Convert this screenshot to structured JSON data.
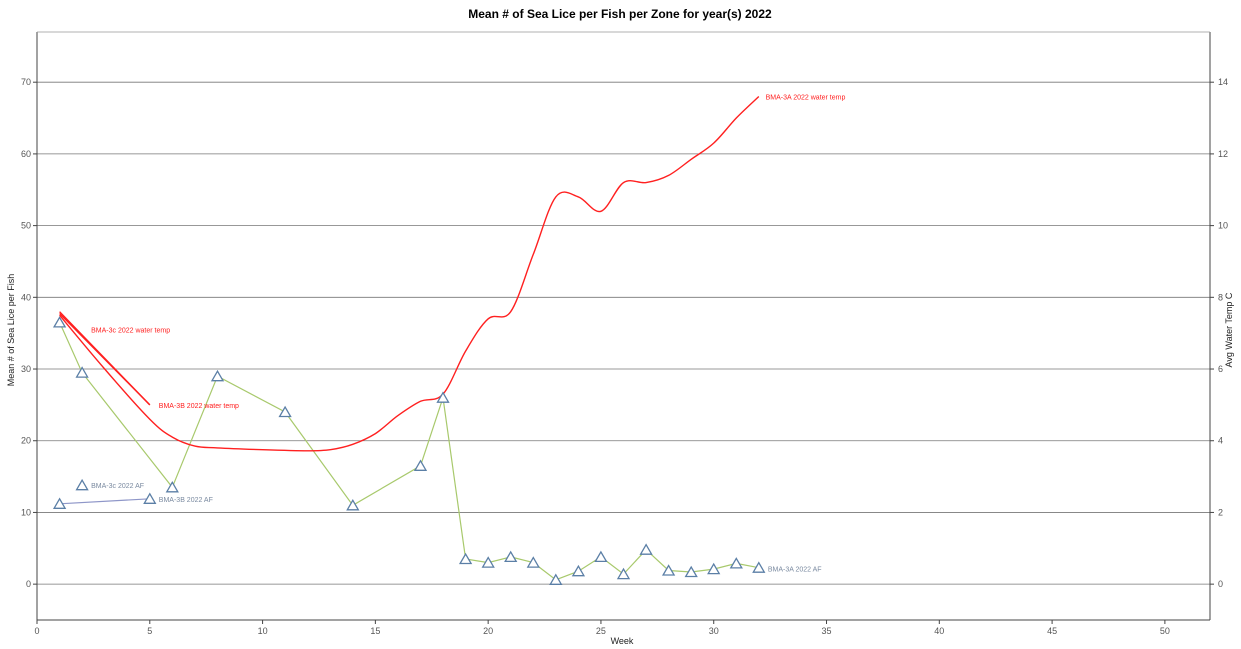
{
  "chart_data": {
    "type": "line",
    "title": "Mean # of Sea Lice per Fish per Zone for year(s) 2022",
    "xlabel": "Week",
    "ylabel_left": "Mean # of Sea Lice per Fish",
    "ylabel_right": "Avg Water Temp C",
    "xlim": [
      0,
      52
    ],
    "ylim_left": [
      -5,
      77
    ],
    "ylim_right": [
      -1,
      15.4
    ],
    "x_ticks": [
      0,
      5,
      10,
      15,
      20,
      25,
      30,
      35,
      40,
      45,
      50
    ],
    "y_ticks_left": [
      0,
      10,
      20,
      30,
      40,
      50,
      60,
      70
    ],
    "y_ticks_right": [
      0,
      2,
      4,
      6,
      8,
      10,
      12,
      14
    ],
    "grid": "horizontal",
    "legend": "none",
    "colors": {
      "temp": "#ff2020",
      "af_3a": "#a8c96c",
      "af_3b": "#8e96c8",
      "marker_stroke": "#5b7fa6",
      "grid": "#777777",
      "label_af": "#7a8aa0"
    },
    "series": [
      {
        "name": "BMA-3A 2022 AF",
        "axis": "left",
        "kind": "af",
        "color": "#a8c96c",
        "x": [
          1,
          2,
          6,
          8,
          11,
          14,
          17,
          18,
          19,
          20,
          21,
          22,
          23,
          24,
          25,
          26,
          27,
          28,
          29,
          30,
          31,
          32
        ],
        "y": [
          36.5,
          29.5,
          13.5,
          29,
          24,
          11,
          16.5,
          26,
          3.5,
          3,
          3.8,
          3,
          0.6,
          1.8,
          3.8,
          1.4,
          4.8,
          1.9,
          1.7,
          2.1,
          2.9,
          2.3
        ]
      },
      {
        "name": "BMA-3c 2022 AF",
        "axis": "left",
        "kind": "af",
        "color": "#a8c96c",
        "x": [
          2
        ],
        "y": [
          13.8
        ]
      },
      {
        "name": "BMA-3B 2022 AF",
        "axis": "left",
        "kind": "af",
        "color": "#8e96c8",
        "x": [
          1,
          5
        ],
        "y": [
          11.2,
          11.9
        ]
      },
      {
        "name": "BMA-3A 2022 water temp",
        "axis": "right",
        "kind": "temp",
        "color": "#ff2020",
        "x": [
          1,
          3,
          5,
          6,
          7,
          8,
          10,
          12,
          13,
          14,
          15,
          16,
          17,
          18,
          19,
          20,
          21,
          22,
          23,
          24,
          25,
          26,
          27,
          28,
          29,
          30,
          31,
          32
        ],
        "y": [
          7.5,
          6.0,
          4.6,
          4.1,
          3.85,
          3.8,
          3.75,
          3.72,
          3.75,
          3.9,
          4.2,
          4.7,
          5.1,
          5.3,
          6.5,
          7.4,
          7.6,
          9.2,
          10.8,
          10.8,
          10.4,
          11.2,
          11.2,
          11.4,
          11.85,
          12.3,
          13.0,
          13.6
        ]
      },
      {
        "name": "BMA-3c 2022 water temp",
        "axis": "right",
        "kind": "temp",
        "color": "#ff2020",
        "x": [
          1,
          5
        ],
        "y": [
          7.6,
          5.0
        ]
      },
      {
        "name": "BMA-3B 2022 water temp",
        "axis": "right",
        "kind": "temp",
        "color": "#ff2020",
        "x": [
          1,
          5
        ],
        "y": [
          7.55,
          5.0
        ]
      }
    ],
    "annotations": [
      {
        "text": "BMA-3A 2022 water temp",
        "x": 32.3,
        "axis": "right",
        "y": 13.6,
        "kind": "temp"
      },
      {
        "text": "BMA-3c 2022 water temp",
        "x": 2.4,
        "axis": "right",
        "y": 7.1,
        "kind": "temp"
      },
      {
        "text": "BMA-3B 2022 water temp",
        "x": 5.4,
        "axis": "right",
        "y": 5.0,
        "kind": "temp"
      },
      {
        "text": "BMA-3c 2022 AF",
        "x": 2.4,
        "axis": "left",
        "y": 13.8,
        "kind": "af"
      },
      {
        "text": "BMA-3B 2022 AF",
        "x": 5.4,
        "axis": "left",
        "y": 11.9,
        "kind": "af"
      },
      {
        "text": "BMA-3A 2022 AF",
        "x": 32.4,
        "axis": "left",
        "y": 2.2,
        "kind": "af"
      }
    ]
  }
}
